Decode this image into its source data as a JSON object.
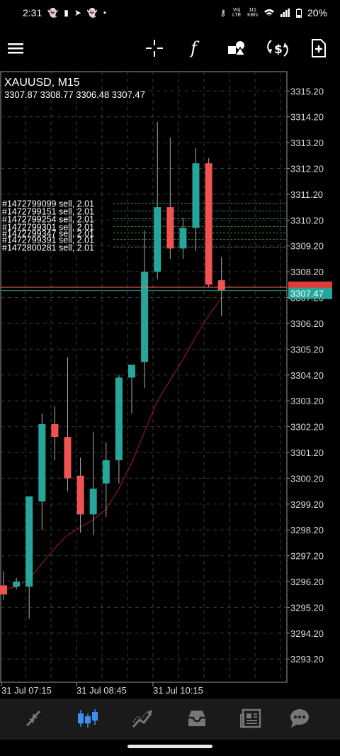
{
  "status_bar": {
    "time": "2:31",
    "battery": "20%",
    "network": "Vo) LTE",
    "speed_top": "111",
    "speed_bottom": "KB/s"
  },
  "toolbar": {
    "icons": [
      "menu-icon",
      "crosshair-icon",
      "function-icon",
      "objects-icon",
      "trade-icon",
      "new-order-icon"
    ]
  },
  "chart": {
    "symbol": "XAUUSD, M15",
    "ohlc": "3307.87 3308.77 3306.48 3307.47",
    "current_price": "3307.47",
    "colors": {
      "bull": "#26a69a",
      "bear": "#ef5350",
      "ma": "#8b1a1a",
      "grid": "#3a3a3a",
      "ask_line": "#ff6666",
      "bid_line": "#26a69a"
    }
  },
  "chart_data": {
    "type": "candlestick",
    "symbol": "XAUUSD",
    "timeframe": "M15",
    "ylim": [
      3292.3,
      3315.95
    ],
    "y_ticks": [
      3315.2,
      3314.2,
      3313.2,
      3312.2,
      3311.2,
      3310.2,
      3309.2,
      3308.2,
      3307.2,
      3306.2,
      3305.2,
      3304.2,
      3303.2,
      3302.2,
      3301.2,
      3300.2,
      3299.2,
      3298.2,
      3297.2,
      3296.2,
      3295.2,
      3294.2,
      3293.2
    ],
    "x_labels": [
      "31 Jul 07:15",
      "31 Jul 08:45",
      "31 Jul 10:15"
    ],
    "candles": [
      {
        "o": 3296.05,
        "h": 3296.6,
        "l": 3295.5,
        "c": 3295.7
      },
      {
        "o": 3296.0,
        "h": 3296.35,
        "l": 3295.9,
        "c": 3296.2
      },
      {
        "o": 3296.0,
        "h": 3299.5,
        "l": 3294.75,
        "c": 3299.5
      },
      {
        "o": 3299.3,
        "h": 3302.7,
        "l": 3298.2,
        "c": 3302.3
      },
      {
        "o": 3302.3,
        "h": 3303.0,
        "l": 3300.9,
        "c": 3301.8
      },
      {
        "o": 3301.8,
        "h": 3304.9,
        "l": 3299.7,
        "c": 3300.2
      },
      {
        "o": 3300.3,
        "h": 3301.0,
        "l": 3298.1,
        "c": 3298.8
      },
      {
        "o": 3298.8,
        "h": 3302.0,
        "l": 3298.0,
        "c": 3299.8
      },
      {
        "o": 3300.0,
        "h": 3301.6,
        "l": 3298.7,
        "c": 3300.9
      },
      {
        "o": 3300.9,
        "h": 3304.2,
        "l": 3300.0,
        "c": 3304.1
      },
      {
        "o": 3304.1,
        "h": 3304.5,
        "l": 3302.7,
        "c": 3304.6
      },
      {
        "o": 3304.7,
        "h": 3309.8,
        "l": 3303.7,
        "c": 3308.2
      },
      {
        "o": 3308.2,
        "h": 3314.0,
        "l": 3307.9,
        "c": 3310.7
      },
      {
        "o": 3310.7,
        "h": 3313.4,
        "l": 3308.7,
        "c": 3309.1
      },
      {
        "o": 3309.1,
        "h": 3310.3,
        "l": 3308.7,
        "c": 3309.9
      },
      {
        "o": 3309.9,
        "h": 3313.0,
        "l": 3309.0,
        "c": 3312.4
      },
      {
        "o": 3312.4,
        "h": 3312.6,
        "l": 3307.6,
        "c": 3307.7
      },
      {
        "o": 3307.87,
        "h": 3308.77,
        "l": 3306.48,
        "c": 3307.47
      }
    ],
    "moving_average": [
      3295.9,
      3296.0,
      3296.3,
      3296.9,
      3297.5,
      3298.0,
      3298.3,
      3298.6,
      3299.0,
      3299.8,
      3300.8,
      3302.0,
      3303.2,
      3304.0,
      3304.8,
      3305.7,
      3306.5,
      3307.2
    ],
    "orders": [
      {
        "label": "#1472799099 sell, 2.01",
        "price": 3310.85
      },
      {
        "label": "#1472799151 sell, 2.01",
        "price": 3310.55
      },
      {
        "label": "#1472799254 sell, 2.01",
        "price": 3310.25
      },
      {
        "label": "#1472799301 sell, 2.01",
        "price": 3309.95
      },
      {
        "label": "#1472799347 sell, 2.01",
        "price": 3309.7
      },
      {
        "label": "#1472799391 sell, 2.01",
        "price": 3309.45
      },
      {
        "label": "#1472800281 sell, 2.01",
        "price": 3309.15
      }
    ],
    "ask_price": 3307.6,
    "bid_price": 3307.47
  },
  "bottom_nav": {
    "items": [
      {
        "name": "quotes",
        "icon": "quotes-icon",
        "active": false
      },
      {
        "name": "chart",
        "icon": "candles-icon",
        "active": true
      },
      {
        "name": "trade",
        "icon": "trade-chart-icon",
        "active": false
      },
      {
        "name": "history",
        "icon": "inbox-icon",
        "active": false
      },
      {
        "name": "news",
        "icon": "news-icon",
        "active": false
      },
      {
        "name": "messages",
        "icon": "chat-icon",
        "active": false
      }
    ]
  }
}
